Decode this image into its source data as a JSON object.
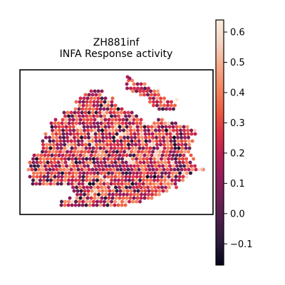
{
  "chart_data": {
    "type": "scatter",
    "title_lines": [
      "ZH881inf",
      "INFA Response activity"
    ],
    "xlabel": "",
    "ylabel": "",
    "grid": false,
    "axis_ticks_visible": false,
    "colorbar": {
      "colormap": "rocket",
      "range": [
        -0.17,
        0.64
      ],
      "ticks": [
        -0.1,
        0.0,
        0.1,
        0.2,
        0.3,
        0.4,
        0.5,
        0.6
      ],
      "tick_labels": [
        "−0.1",
        "0.0",
        "0.1",
        "0.2",
        "0.3",
        "0.4",
        "0.5",
        "0.6"
      ],
      "stops": [
        "#03051a",
        "#2b1a3a",
        "#4c1d4b",
        "#701f57",
        "#971c5b",
        "#be1e52",
        "#e13342",
        "#f06043",
        "#f58860",
        "#f6ad8f",
        "#f6d5c4",
        "#faebdd"
      ]
    },
    "spots": {
      "shape": "tissue section of hexagonally packed spots",
      "value_range": [
        -0.17,
        0.64
      ],
      "typical_value": 0.2
    }
  }
}
